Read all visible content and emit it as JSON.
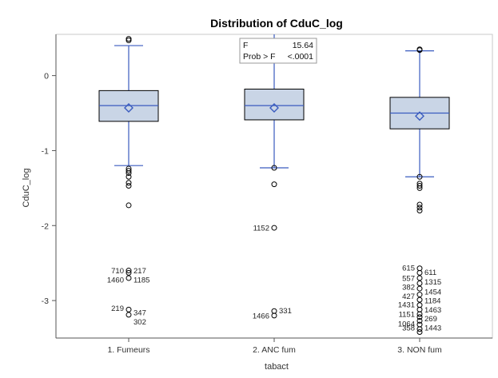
{
  "chart_data": {
    "type": "box",
    "title": "Distribution of CduC_log",
    "xlabel": "tabact",
    "ylabel": "CduC_log",
    "ylim": [
      -3.5,
      0.55
    ],
    "yticks": [
      0,
      -1,
      -2,
      -3
    ],
    "grid": false,
    "colors": {
      "box_fill": "#c9d5e6",
      "box_stroke": "#000000",
      "whisker": "#3a5bbf",
      "median": "#3a5bbf",
      "mean_marker": "#3a5bbf",
      "outlier": "#000000",
      "frame": "#c9c9c9"
    },
    "inset": {
      "rows": [
        {
          "label": "F",
          "value": "15.64"
        },
        {
          "label": "Prob > F",
          "value": "<.0001"
        }
      ]
    },
    "categories": [
      "1. Fumeurs",
      "2. ANC fum",
      "3. NON fum"
    ],
    "groups": [
      {
        "category": "1. Fumeurs",
        "whisker_high": 0.4,
        "q3": -0.2,
        "median": -0.4,
        "mean": -0.43,
        "q1": -0.61,
        "whisker_low": -1.2,
        "outliers": [
          0.49,
          0.47,
          -1.24,
          -1.27,
          -1.3,
          -1.35,
          -1.43,
          -1.47,
          -1.73,
          -2.6,
          -2.63,
          -2.7,
          -3.12,
          -3.19
        ],
        "outlier_labels": [
          {
            "text": "710",
            "y": -2.6,
            "side": "left"
          },
          {
            "text": "217",
            "y": -2.6,
            "side": "right"
          },
          {
            "text": "1460",
            "y": -2.72,
            "side": "left"
          },
          {
            "text": "1185",
            "y": -2.72,
            "side": "right"
          },
          {
            "text": "219",
            "y": -3.1,
            "side": "left"
          },
          {
            "text": "347",
            "y": -3.16,
            "side": "right"
          },
          {
            "text": "302",
            "y": -3.28,
            "side": "right"
          }
        ]
      },
      {
        "category": "2. ANC fum",
        "whisker_high": 0.55,
        "q3": -0.18,
        "median": -0.4,
        "mean": -0.43,
        "q1": -0.59,
        "whisker_low": -1.23,
        "outliers": [
          -1.23,
          -1.45,
          -2.03,
          -3.14,
          -3.2
        ],
        "outlier_labels": [
          {
            "text": "1152",
            "y": -2.03,
            "side": "left"
          },
          {
            "text": "331",
            "y": -3.13,
            "side": "right"
          },
          {
            "text": "1466",
            "y": -3.2,
            "side": "left"
          }
        ]
      },
      {
        "category": "3. NON fum",
        "whisker_high": 0.33,
        "q3": -0.29,
        "median": -0.5,
        "mean": -0.54,
        "q1": -0.71,
        "whisker_low": -1.35,
        "outliers": [
          0.35,
          0.34,
          -1.35,
          -1.44,
          -1.47,
          -1.5,
          -1.72,
          -1.76,
          -1.8,
          -2.57,
          -2.63,
          -2.7,
          -2.77,
          -2.84,
          -2.92,
          -2.99,
          -3.06,
          -3.12,
          -3.18,
          -3.22,
          -3.27,
          -3.32,
          -3.38,
          -3.42
        ],
        "outlier_labels": [
          {
            "text": "615",
            "y": -2.56,
            "side": "left"
          },
          {
            "text": "611",
            "y": -2.62,
            "side": "right"
          },
          {
            "text": "557",
            "y": -2.7,
            "side": "left"
          },
          {
            "text": "1315",
            "y": -2.75,
            "side": "right"
          },
          {
            "text": "382",
            "y": -2.82,
            "side": "left"
          },
          {
            "text": "1454",
            "y": -2.88,
            "side": "right"
          },
          {
            "text": "427",
            "y": -2.94,
            "side": "left"
          },
          {
            "text": "1184",
            "y": -3.0,
            "side": "right"
          },
          {
            "text": "1431",
            "y": -3.05,
            "side": "left"
          },
          {
            "text": "1463",
            "y": -3.12,
            "side": "right"
          },
          {
            "text": "1151",
            "y": -3.18,
            "side": "left"
          },
          {
            "text": "269",
            "y": -3.24,
            "side": "right"
          },
          {
            "text": "1064",
            "y": -3.31,
            "side": "left"
          },
          {
            "text": "358",
            "y": -3.36,
            "side": "left"
          },
          {
            "text": "1443",
            "y": -3.36,
            "side": "right"
          }
        ]
      }
    ]
  }
}
